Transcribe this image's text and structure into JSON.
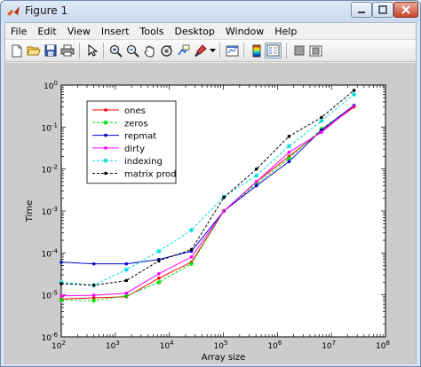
{
  "window": {
    "title": "Figure 1",
    "menu": [
      "File",
      "Edit",
      "View",
      "Insert",
      "Tools",
      "Desktop",
      "Window",
      "Help"
    ]
  },
  "toolbar": {
    "icons": [
      "new-file-icon",
      "open-folder-icon",
      "save-icon",
      "print-icon",
      "pointer-arrow-icon",
      "zoom-in-icon",
      "zoom-out-icon",
      "pan-hand-icon",
      "rotate-3d-icon",
      "data-cursor-icon",
      "brush-icon",
      "dropdown-arrow-icon",
      "link-plot-icon",
      "insert-colorbar-icon",
      "insert-legend-icon",
      "hide-plot-tools-icon",
      "show-plot-tools-icon"
    ]
  },
  "chart_data": {
    "type": "line",
    "xlabel": "Array size",
    "ylabel": "Time",
    "xscale": "log",
    "yscale": "log",
    "xlim": [
      100,
      100000000
    ],
    "ylim": [
      1e-06,
      1
    ],
    "x_ticks": [
      {
        "base": "10",
        "exp": "2"
      },
      {
        "base": "10",
        "exp": "3"
      },
      {
        "base": "10",
        "exp": "4"
      },
      {
        "base": "10",
        "exp": "5"
      },
      {
        "base": "10",
        "exp": "6"
      },
      {
        "base": "10",
        "exp": "7"
      },
      {
        "base": "10",
        "exp": "8"
      }
    ],
    "y_ticks": [
      {
        "base": "10",
        "exp": "-6"
      },
      {
        "base": "10",
        "exp": "-5"
      },
      {
        "base": "10",
        "exp": "-4"
      },
      {
        "base": "10",
        "exp": "-3"
      },
      {
        "base": "10",
        "exp": "-2"
      },
      {
        "base": "10",
        "exp": "-1"
      },
      {
        "base": "10",
        "exp": "0"
      }
    ],
    "legend_position": "top-left",
    "x": [
      100,
      400,
      1600,
      6400,
      25600,
      102400,
      409600,
      1638400,
      6553600,
      26214400
    ],
    "series": [
      {
        "name": "ones",
        "color": "#ff0000",
        "dash": "solid",
        "marker": "dot",
        "values": [
          8e-06,
          8.5e-06,
          9e-06,
          2.5e-05,
          6e-05,
          0.001,
          0.005,
          0.02,
          0.08,
          0.3
        ]
      },
      {
        "name": "zeros",
        "color": "#00dd00",
        "dash": "dashed",
        "marker": "star",
        "values": [
          7.5e-06,
          7.3e-06,
          9.5e-06,
          2e-05,
          5.5e-05,
          0.001,
          0.0045,
          0.018,
          0.09,
          0.32
        ]
      },
      {
        "name": "repmat",
        "color": "#0000cc",
        "dash": "solid",
        "marker": "dot",
        "values": [
          6e-05,
          5.5e-05,
          5.5e-05,
          7e-05,
          0.00011,
          0.001,
          0.004,
          0.015,
          0.085,
          0.33
        ]
      },
      {
        "name": "dirty",
        "color": "#ff00ff",
        "dash": "solid",
        "marker": "dot",
        "values": [
          9.5e-06,
          9.8e-06,
          1.1e-05,
          3.2e-05,
          8e-05,
          0.001,
          0.005,
          0.025,
          0.075,
          0.32
        ]
      },
      {
        "name": "indexing",
        "color": "#00dddd",
        "dash": "dashed",
        "marker": "star",
        "values": [
          2e-05,
          1.7e-05,
          4e-05,
          0.00011,
          0.00035,
          0.0022,
          0.007,
          0.035,
          0.14,
          0.6
        ]
      },
      {
        "name": "matrix prod",
        "color": "#000000",
        "dash": "dashed",
        "marker": "dot",
        "values": [
          1.85e-05,
          1.7e-05,
          2.2e-05,
          6.5e-05,
          0.00012,
          0.0021,
          0.01,
          0.06,
          0.17,
          0.75
        ]
      }
    ]
  }
}
